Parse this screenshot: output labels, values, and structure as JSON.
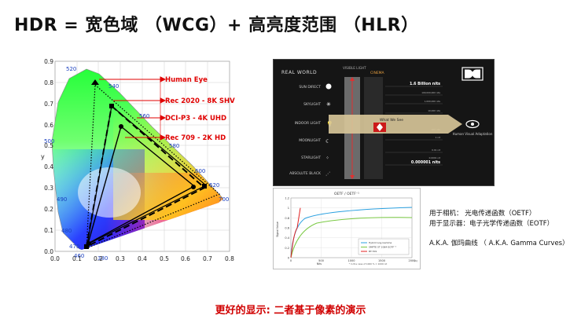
{
  "title": "HDR = 宽色域 （WCG）+ 高亮度范围 （HLR）",
  "cie": {
    "axis_y_label": "y",
    "y_ticks": [
      "0.9",
      "0.8",
      "0.7",
      "0.6",
      "0.5",
      "0.4",
      "0.3",
      "0.2",
      "0.1",
      "0.0"
    ],
    "x_ticks": [
      "0.0",
      "0.1",
      "0.2",
      "0.3",
      "0.4",
      "0.5",
      "0.6",
      "0.7",
      "0.8"
    ],
    "wavelengths": [
      "520",
      "540",
      "560",
      "580",
      "600",
      "620",
      "700",
      "500",
      "490",
      "480",
      "470",
      "460",
      "380"
    ],
    "annotations": [
      "Human Eye",
      "Rec 2020 - 8K SHV",
      "DCI-P3 - 4K UHD",
      "Rec 709 - 2K HD"
    ],
    "colors": {
      "annotation": "#e00000",
      "gamut": "#000000"
    }
  },
  "dolby": {
    "header_left": "REAL WORLD",
    "header_visible": "VISIBLE LIGHT",
    "header_cinema": "CINEMA",
    "rows": [
      "SUN DIRECT",
      "SKYLIGHT",
      "INDOOR LIGHT",
      "MOONLIGHT",
      "STARLIGHT",
      "ABSOLUTE BLACK"
    ],
    "top_nits": "1.6 Billion nits",
    "bottom_nits": "0.000001 nits",
    "small_nits": [
      "100,000,000 nits",
      "1,000,000 nits",
      "10,000 nits",
      "100 nits",
      "1 nit",
      "0.01 nit",
      "0.0001 nit"
    ],
    "what_we_see": "What We See",
    "human_visual": "Human Visual Adaptation"
  },
  "eotf": {
    "title": "OETF / OETF⁻¹",
    "ylabel": "Signal Value",
    "xlabel": "Nits",
    "x_ticks": [
      "0",
      "500",
      "1000",
      "1500",
      "2000"
    ],
    "x_unit": "(n)",
    "y_ticks": [
      "1.2",
      "1",
      "0.8",
      "0.6",
      "0.4",
      "0.2",
      "0"
    ],
    "legend": [
      "Hybrid Log-Gamma",
      "SMPTE ST 2084 EOTF⁻¹",
      "BT.709"
    ],
    "note": "* In the case of 1000 % = 1000 nit"
  },
  "notes": [
    "用于相机：  光电传递函数（OETF）",
    "用于显示器：电子光学传递函数（EOTF）",
    "A.K.A. 伽玛曲线 （ A.K.A. Gamma Curves）"
  ],
  "footer": "更好的显示: 二者基于像素的演示"
}
